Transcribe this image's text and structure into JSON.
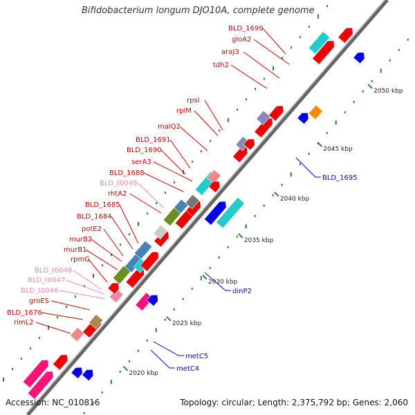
{
  "title": "Bifidobacterium longum DJO10A, complete genome",
  "footer": {
    "accession": "Accession: NC_010816",
    "summary": "Topology: circular; Length: 2,375,792 bp; Genes: 2,060"
  },
  "colors": {
    "backbone": "#888888",
    "tick": "#2a7a2a",
    "label_red": "#cc0000",
    "label_pink": "#ee88aa",
    "label_blue": "#0000cc"
  },
  "scale_labels": [
    "2020 kbp",
    "2025 kbp",
    "2030 kbp",
    "2035 kbp",
    "2040 kbp",
    "2045 kbp",
    "2050 kbp"
  ],
  "genes_left": [
    {
      "name": "BLD_1699",
      "kind": "red"
    },
    {
      "name": "gloA2",
      "kind": "red"
    },
    {
      "name": "araJ3",
      "kind": "red"
    },
    {
      "name": "tdh2",
      "kind": "red"
    },
    {
      "name": "rpsI",
      "kind": "red"
    },
    {
      "name": "rplM",
      "kind": "red"
    },
    {
      "name": "malQ2",
      "kind": "red"
    },
    {
      "name": "BLD_1691",
      "kind": "red"
    },
    {
      "name": "BLD_1690",
      "kind": "red"
    },
    {
      "name": "serA3",
      "kind": "red"
    },
    {
      "name": "BLD_1688",
      "kind": "red"
    },
    {
      "name": "BLD_t0049",
      "kind": "pink"
    },
    {
      "name": "rhtA2",
      "kind": "red"
    },
    {
      "name": "BLD_1685",
      "kind": "red"
    },
    {
      "name": "BLD_1684",
      "kind": "red"
    },
    {
      "name": "potE2",
      "kind": "red"
    },
    {
      "name": "murB2",
      "kind": "red"
    },
    {
      "name": "murB1",
      "kind": "red"
    },
    {
      "name": "rpmG",
      "kind": "red"
    },
    {
      "name": "BLD_t0048",
      "kind": "pink"
    },
    {
      "name": "BLD_t0047",
      "kind": "pink"
    },
    {
      "name": "BLD_t0046",
      "kind": "pink"
    },
    {
      "name": "groES",
      "kind": "red"
    },
    {
      "name": "BLD_1676",
      "kind": "red"
    },
    {
      "name": "rimL2",
      "kind": "red"
    }
  ],
  "genes_right": [
    {
      "name": "BLD_1695",
      "kind": "blue"
    },
    {
      "name": "dinP2",
      "kind": "blue"
    },
    {
      "name": "metC5",
      "kind": "blue"
    },
    {
      "name": "metC4",
      "kind": "blue"
    }
  ]
}
